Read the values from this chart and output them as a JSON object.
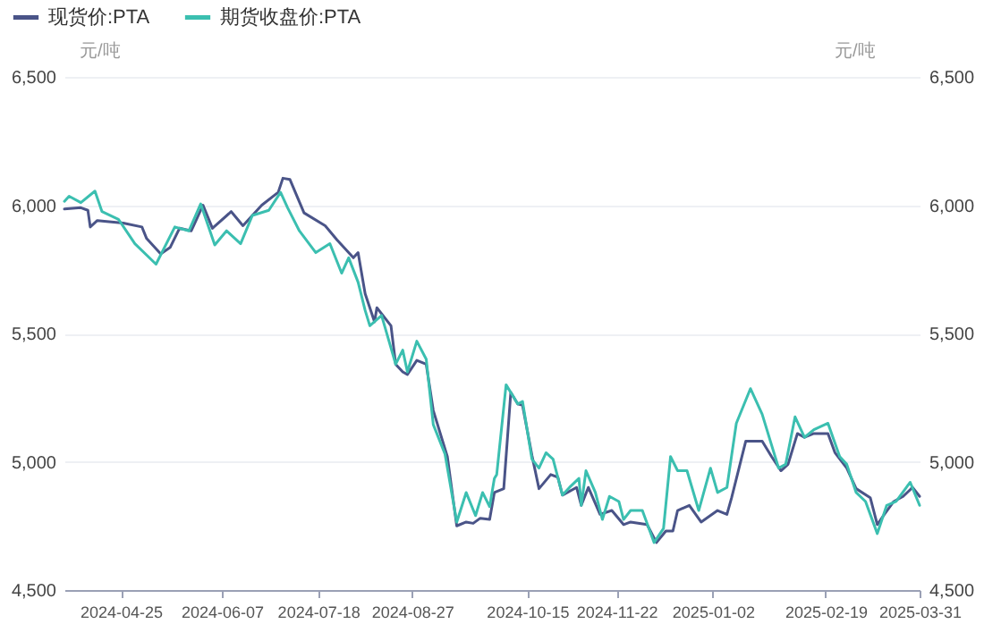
{
  "chart_data": {
    "type": "line",
    "ylabel": "元/吨",
    "y2label": "元/吨",
    "xlim": [
      "2024-04-01",
      "2025-03-31"
    ],
    "xticks": [
      {
        "value": "2024-04-25",
        "label": "2024-04-25"
      },
      {
        "value": "2024-06-07",
        "label": "2024-06-07"
      },
      {
        "value": "2024-07-18",
        "label": "2024-07-18"
      },
      {
        "value": "2024-08-27",
        "label": "2024-08-27"
      },
      {
        "value": "2024-10-15",
        "label": "2024-10-15"
      },
      {
        "value": "2024-11-22",
        "label": "2024-11-22"
      },
      {
        "value": "2025-01-02",
        "label": "2025-01-02"
      },
      {
        "value": "2025-02-19",
        "label": "2025-02-19"
      },
      {
        "value": "2025-03-31",
        "label": "2025-03-31"
      }
    ],
    "ylim": [
      4500,
      6500
    ],
    "yticks": [
      {
        "value": 4500,
        "label": "4,500"
      },
      {
        "value": 5000,
        "label": "5,000"
      },
      {
        "value": 5500,
        "label": "5,500"
      },
      {
        "value": 6000,
        "label": "6,000"
      },
      {
        "value": 6500,
        "label": "6,500"
      }
    ],
    "y2lim": [
      4500,
      6500
    ],
    "y2ticks": [
      {
        "value": 4500,
        "label": "4,500"
      },
      {
        "value": 5000,
        "label": "5,000"
      },
      {
        "value": 5500,
        "label": "5,500"
      },
      {
        "value": 6000,
        "label": "6,000"
      },
      {
        "value": 6500,
        "label": "6,500"
      }
    ],
    "grid": "y",
    "legend": "top left",
    "line_style": "solid",
    "series": [
      {
        "name": "现货价:PTA",
        "color": "#4a5488",
        "x": [
          "2024-04-01",
          "2024-04-08",
          "2024-04-11",
          "2024-04-12",
          "2024-04-15",
          "2024-04-26",
          "2024-05-04",
          "2024-05-06",
          "2024-05-12",
          "2024-05-16",
          "2024-05-20",
          "2024-05-25",
          "2024-05-30",
          "2024-06-03",
          "2024-06-11",
          "2024-06-16",
          "2024-06-24",
          "2024-07-01",
          "2024-07-03",
          "2024-07-06",
          "2024-07-12",
          "2024-07-21",
          "2024-07-26",
          "2024-08-02",
          "2024-08-04",
          "2024-08-07",
          "2024-08-11",
          "2024-08-12",
          "2024-08-18",
          "2024-08-20",
          "2024-08-23",
          "2024-08-25",
          "2024-08-29",
          "2024-09-02",
          "2024-09-05",
          "2024-09-11",
          "2024-09-15",
          "2024-09-19",
          "2024-09-22",
          "2024-09-25",
          "2024-09-29",
          "2024-10-01",
          "2024-10-05",
          "2024-10-08",
          "2024-10-11",
          "2024-10-13",
          "2024-10-17",
          "2024-10-20",
          "2024-10-25",
          "2024-10-28",
          "2024-10-30",
          "2024-11-05",
          "2024-11-07",
          "2024-11-10",
          "2024-11-15",
          "2024-11-20",
          "2024-11-25",
          "2024-11-28",
          "2024-12-05",
          "2024-12-09",
          "2024-12-13",
          "2024-12-16",
          "2024-12-18",
          "2024-12-23",
          "2024-12-28",
          "2025-01-04",
          "2025-01-08",
          "2025-01-10",
          "2025-01-16",
          "2025-01-23",
          "2025-01-27",
          "2025-01-31",
          "2025-02-03",
          "2025-02-07",
          "2025-02-10",
          "2025-02-14",
          "2025-02-20",
          "2025-02-23",
          "2025-02-28",
          "2025-03-04",
          "2025-03-10",
          "2025-03-13",
          "2025-03-16",
          "2025-03-20",
          "2025-03-24",
          "2025-03-28",
          "2025-03-31"
        ],
        "values": [
          5985,
          5990,
          5980,
          5915,
          5940,
          5930,
          5915,
          5870,
          5810,
          5835,
          5910,
          5900,
          6000,
          5910,
          5975,
          5920,
          6000,
          6050,
          6105,
          6100,
          5970,
          5920,
          5865,
          5795,
          5815,
          5655,
          5545,
          5600,
          5530,
          5380,
          5350,
          5340,
          5395,
          5380,
          5200,
          5020,
          4750,
          4765,
          4760,
          4780,
          4775,
          4880,
          4895,
          5270,
          5225,
          5220,
          5025,
          4895,
          4950,
          4940,
          4870,
          4900,
          4830,
          4900,
          4795,
          4810,
          4755,
          4765,
          4755,
          4685,
          4730,
          4730,
          4810,
          4830,
          4765,
          4810,
          4795,
          4860,
          5080,
          5080,
          5020,
          4965,
          4990,
          5110,
          5095,
          5110,
          5110,
          5035,
          4975,
          4895,
          4860,
          4755,
          4795,
          4845,
          4865,
          4900,
          4865
        ]
      },
      {
        "name": "期货收盘价:PTA",
        "color": "#3bbfb0",
        "x": [
          "2024-04-01",
          "2024-04-03",
          "2024-04-08",
          "2024-04-14",
          "2024-04-17",
          "2024-04-24",
          "2024-05-01",
          "2024-05-10",
          "2024-05-18",
          "2024-05-24",
          "2024-05-29",
          "2024-06-04",
          "2024-06-09",
          "2024-06-15",
          "2024-06-20",
          "2024-06-27",
          "2024-07-02",
          "2024-07-05",
          "2024-07-10",
          "2024-07-17",
          "2024-07-23",
          "2024-07-28",
          "2024-07-31",
          "2024-08-04",
          "2024-08-07",
          "2024-08-09",
          "2024-08-14",
          "2024-08-20",
          "2024-08-23",
          "2024-08-25",
          "2024-08-29",
          "2024-09-02",
          "2024-09-05",
          "2024-09-10",
          "2024-09-15",
          "2024-09-19",
          "2024-09-23",
          "2024-09-26",
          "2024-09-29",
          "2024-10-01",
          "2024-10-02",
          "2024-10-06",
          "2024-10-11",
          "2024-10-13",
          "2024-10-17",
          "2024-10-20",
          "2024-10-23",
          "2024-10-26",
          "2024-10-30",
          "2024-11-02",
          "2024-11-06",
          "2024-11-07",
          "2024-11-09",
          "2024-11-13",
          "2024-11-16",
          "2024-11-19",
          "2024-11-23",
          "2024-11-25",
          "2024-11-28",
          "2024-12-03",
          "2024-12-08",
          "2024-12-12",
          "2024-12-15",
          "2024-12-18",
          "2024-12-22",
          "2024-12-27",
          "2025-01-01",
          "2025-01-04",
          "2025-01-08",
          "2025-01-12",
          "2025-01-18",
          "2025-01-23",
          "2025-01-30",
          "2025-02-02",
          "2025-02-06",
          "2025-02-10",
          "2025-02-14",
          "2025-02-20",
          "2025-02-25",
          "2025-02-28",
          "2025-03-04",
          "2025-03-08",
          "2025-03-13",
          "2025-03-17",
          "2025-03-21",
          "2025-03-27",
          "2025-03-31"
        ],
        "values": [
          6015,
          6035,
          6010,
          6055,
          5975,
          5945,
          5850,
          5770,
          5915,
          5900,
          6005,
          5845,
          5900,
          5850,
          5960,
          5980,
          6050,
          5990,
          5900,
          5815,
          5850,
          5735,
          5795,
          5700,
          5590,
          5530,
          5570,
          5380,
          5435,
          5350,
          5470,
          5400,
          5145,
          5030,
          4765,
          4880,
          4790,
          4880,
          4825,
          4935,
          4950,
          5300,
          5225,
          5235,
          5010,
          4975,
          5035,
          5010,
          4870,
          4900,
          4935,
          4830,
          4965,
          4880,
          4775,
          4865,
          4845,
          4775,
          4810,
          4810,
          4685,
          4740,
          5020,
          4965,
          4965,
          4810,
          4975,
          4880,
          4900,
          5150,
          5285,
          5185,
          4975,
          4990,
          5175,
          5095,
          5125,
          5150,
          5020,
          4990,
          4880,
          4845,
          4720,
          4830,
          4845,
          4920,
          4830
        ]
      }
    ]
  }
}
